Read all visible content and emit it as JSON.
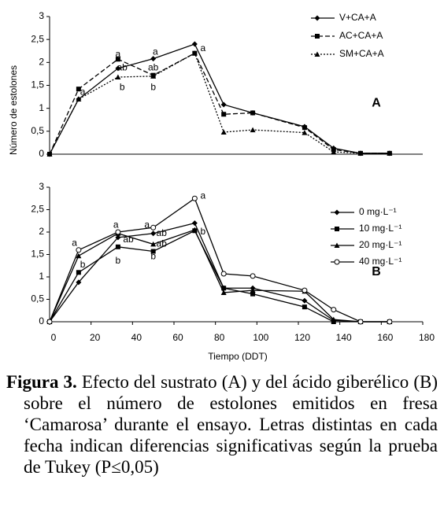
{
  "chart_data": [
    {
      "type": "line",
      "label": "A",
      "ylabel": "Número de estolones",
      "x": [
        0,
        14,
        33,
        50,
        70,
        84,
        98,
        123,
        137,
        150,
        164
      ],
      "xlim": [
        0,
        180
      ],
      "ylim": [
        0,
        3
      ],
      "yticks": [
        0,
        {
          "value": 0.5,
          "label": "0,5"
        },
        1,
        {
          "value": 1.5,
          "label": "1,5"
        },
        2,
        {
          "value": 2.5,
          "label": "2,5"
        },
        3
      ],
      "legend": "upper right",
      "series": [
        {
          "name": "V+CA+A",
          "color": "#000000",
          "marker": "diamond",
          "dash": "solid",
          "values": [
            0,
            1.2,
            1.87,
            2.08,
            2.4,
            1.08,
            0.9,
            0.6,
            0.13,
            0.02,
            0.02
          ]
        },
        {
          "name": "AC+CA+A",
          "color": "#000000",
          "marker": "square",
          "dash": "dashed",
          "values": [
            0,
            1.42,
            2.07,
            1.72,
            2.2,
            0.87,
            0.9,
            0.58,
            0.1,
            0.02,
            0.02
          ]
        },
        {
          "name": "SM+CA+A",
          "color": "#000000",
          "marker": "triangle",
          "dash": "dotted",
          "values": [
            0,
            1.2,
            1.68,
            1.7,
            2.2,
            0.48,
            0.53,
            0.47,
            0.05,
            0.02,
            0.02
          ]
        }
      ],
      "annotations": [
        {
          "text": "a",
          "x": 16,
          "y": 1.35
        },
        {
          "text": "a",
          "x": 33,
          "y": 2.17
        },
        {
          "text": "ab",
          "x": 35,
          "y": 1.88
        },
        {
          "text": "b",
          "x": 35,
          "y": 1.45
        },
        {
          "text": "a",
          "x": 51,
          "y": 2.22
        },
        {
          "text": "ab",
          "x": 50,
          "y": 1.88
        },
        {
          "text": "b",
          "x": 50,
          "y": 1.45
        },
        {
          "text": "a",
          "x": 74,
          "y": 2.3
        }
      ]
    },
    {
      "type": "line",
      "label": "B",
      "xlabel": "Tiempo (DDT)",
      "x": [
        0,
        14,
        33,
        50,
        70,
        84,
        98,
        123,
        137,
        150,
        164
      ],
      "xlim": [
        0,
        180
      ],
      "ylim": [
        0,
        3
      ],
      "xticks": [
        0,
        20,
        40,
        60,
        80,
        100,
        120,
        140,
        160,
        180
      ],
      "yticks": [
        0,
        {
          "value": 0.5,
          "label": "0,5"
        },
        1,
        {
          "value": 1.5,
          "label": "1,5"
        },
        2,
        {
          "value": 2.5,
          "label": "2,5"
        },
        3
      ],
      "legend": "upper right",
      "series": [
        {
          "name": "0 mg·L⁻¹",
          "color": "#000000",
          "marker": "diamond",
          "dash": "solid",
          "values": [
            0,
            0.88,
            1.88,
            1.97,
            2.2,
            0.75,
            0.75,
            0.47,
            0.03,
            0,
            0
          ]
        },
        {
          "name": "10 mg·L⁻¹",
          "color": "#000000",
          "marker": "square",
          "dash": "solid",
          "values": [
            0,
            1.1,
            1.67,
            1.57,
            2.03,
            0.75,
            0.62,
            0.33,
            0,
            0,
            0
          ]
        },
        {
          "name": "20 mg·L⁻¹",
          "color": "#000000",
          "marker": "triangle",
          "dash": "solid",
          "values": [
            0,
            1.47,
            1.97,
            1.73,
            2.05,
            0.65,
            0.7,
            0.68,
            0.05,
            0,
            0
          ]
        },
        {
          "name": "40 mg·L⁻¹",
          "color": "#000000",
          "marker": "circle",
          "dash": "solid",
          "values": [
            0,
            1.6,
            2.0,
            2.1,
            2.75,
            1.07,
            1.02,
            0.7,
            0.27,
            0,
            0
          ]
        }
      ],
      "annotations": [
        {
          "text": "a",
          "x": 12,
          "y": 1.75
        },
        {
          "text": "b",
          "x": 16,
          "y": 1.27
        },
        {
          "text": "a",
          "x": 32,
          "y": 2.15
        },
        {
          "text": "ab",
          "x": 38,
          "y": 1.83
        },
        {
          "text": "b",
          "x": 33,
          "y": 1.35
        },
        {
          "text": "a",
          "x": 47,
          "y": 2.15
        },
        {
          "text": "ab",
          "x": 54,
          "y": 1.97
        },
        {
          "text": "ab",
          "x": 54,
          "y": 1.73
        },
        {
          "text": "b",
          "x": 50,
          "y": 1.45
        },
        {
          "text": "a",
          "x": 74,
          "y": 2.8
        },
        {
          "text": "b",
          "x": 74,
          "y": 2.0
        }
      ]
    }
  ],
  "caption": {
    "label": "Figura 3.",
    "text": " Efecto del sustrato (A) y del ácido giberélico (B) sobre el número de estolones emitidos en fresa ‘Camarosa’ durante el ensayo. Letras distintas en cada fecha indican diferencias significativas según la prueba de Tukey (P≤0,05)"
  }
}
